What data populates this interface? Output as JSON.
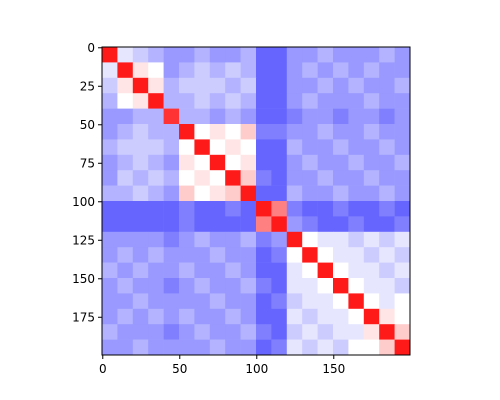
{
  "chart_data": {
    "type": "heatmap",
    "colormap": "bwr",
    "vlim": [
      0,
      1
    ],
    "xlim": [
      -0.5,
      199.5
    ],
    "ylim": [
      199.5,
      -0.5
    ],
    "xticks": [
      0,
      50,
      100,
      150
    ],
    "yticks": [
      0,
      25,
      50,
      75,
      100,
      125,
      150,
      175
    ],
    "values": [
      [
        0.95,
        0.45,
        0.4,
        0.35,
        0.3,
        0.3,
        0.35,
        0.3,
        0.3,
        0.35,
        0.2,
        0.2,
        0.3,
        0.3,
        0.35,
        0.3,
        0.3,
        0.3,
        0.35,
        0.3
      ],
      [
        0.45,
        0.95,
        0.55,
        0.5,
        0.3,
        0.35,
        0.4,
        0.35,
        0.4,
        0.35,
        0.2,
        0.2,
        0.3,
        0.35,
        0.3,
        0.35,
        0.3,
        0.35,
        0.3,
        0.3
      ],
      [
        0.4,
        0.55,
        0.95,
        0.55,
        0.35,
        0.4,
        0.4,
        0.4,
        0.35,
        0.4,
        0.2,
        0.2,
        0.3,
        0.3,
        0.35,
        0.3,
        0.35,
        0.3,
        0.3,
        0.35
      ],
      [
        0.35,
        0.5,
        0.55,
        0.95,
        0.35,
        0.35,
        0.4,
        0.35,
        0.4,
        0.35,
        0.2,
        0.2,
        0.3,
        0.35,
        0.3,
        0.3,
        0.3,
        0.35,
        0.3,
        0.3
      ],
      [
        0.3,
        0.3,
        0.35,
        0.35,
        0.9,
        0.35,
        0.35,
        0.3,
        0.35,
        0.3,
        0.2,
        0.2,
        0.25,
        0.3,
        0.3,
        0.25,
        0.3,
        0.3,
        0.25,
        0.3
      ],
      [
        0.3,
        0.35,
        0.4,
        0.35,
        0.35,
        0.95,
        0.5,
        0.55,
        0.5,
        0.6,
        0.25,
        0.25,
        0.3,
        0.3,
        0.35,
        0.3,
        0.3,
        0.35,
        0.3,
        0.3
      ],
      [
        0.35,
        0.4,
        0.4,
        0.4,
        0.35,
        0.5,
        0.95,
        0.5,
        0.55,
        0.5,
        0.2,
        0.2,
        0.35,
        0.3,
        0.3,
        0.35,
        0.3,
        0.3,
        0.35,
        0.3
      ],
      [
        0.3,
        0.35,
        0.4,
        0.35,
        0.3,
        0.55,
        0.5,
        0.95,
        0.5,
        0.55,
        0.2,
        0.2,
        0.3,
        0.35,
        0.3,
        0.3,
        0.35,
        0.3,
        0.3,
        0.35
      ],
      [
        0.3,
        0.4,
        0.35,
        0.4,
        0.35,
        0.5,
        0.55,
        0.5,
        0.95,
        0.6,
        0.25,
        0.2,
        0.3,
        0.3,
        0.35,
        0.3,
        0.3,
        0.35,
        0.3,
        0.3
      ],
      [
        0.35,
        0.35,
        0.4,
        0.35,
        0.3,
        0.6,
        0.5,
        0.55,
        0.6,
        0.95,
        0.2,
        0.2,
        0.35,
        0.3,
        0.3,
        0.35,
        0.3,
        0.3,
        0.35,
        0.3
      ],
      [
        0.2,
        0.2,
        0.2,
        0.2,
        0.2,
        0.25,
        0.2,
        0.2,
        0.25,
        0.2,
        0.95,
        0.75,
        0.25,
        0.2,
        0.2,
        0.25,
        0.2,
        0.2,
        0.25,
        0.2
      ],
      [
        0.2,
        0.2,
        0.2,
        0.2,
        0.2,
        0.25,
        0.2,
        0.2,
        0.2,
        0.2,
        0.75,
        0.95,
        0.3,
        0.25,
        0.2,
        0.2,
        0.25,
        0.2,
        0.2,
        0.25
      ],
      [
        0.3,
        0.3,
        0.3,
        0.3,
        0.25,
        0.3,
        0.35,
        0.3,
        0.3,
        0.35,
        0.25,
        0.3,
        0.95,
        0.5,
        0.45,
        0.45,
        0.4,
        0.45,
        0.4,
        0.45
      ],
      [
        0.3,
        0.35,
        0.3,
        0.35,
        0.3,
        0.3,
        0.3,
        0.35,
        0.3,
        0.3,
        0.2,
        0.25,
        0.5,
        0.95,
        0.5,
        0.45,
        0.45,
        0.4,
        0.45,
        0.4
      ],
      [
        0.35,
        0.3,
        0.35,
        0.3,
        0.3,
        0.35,
        0.3,
        0.3,
        0.35,
        0.3,
        0.2,
        0.2,
        0.45,
        0.5,
        0.95,
        0.5,
        0.45,
        0.45,
        0.4,
        0.45
      ],
      [
        0.3,
        0.35,
        0.3,
        0.3,
        0.25,
        0.3,
        0.35,
        0.3,
        0.3,
        0.35,
        0.25,
        0.2,
        0.45,
        0.45,
        0.5,
        0.95,
        0.5,
        0.45,
        0.45,
        0.4
      ],
      [
        0.3,
        0.3,
        0.35,
        0.3,
        0.3,
        0.3,
        0.3,
        0.35,
        0.3,
        0.3,
        0.2,
        0.25,
        0.4,
        0.45,
        0.45,
        0.5,
        0.95,
        0.5,
        0.45,
        0.5
      ],
      [
        0.3,
        0.35,
        0.3,
        0.35,
        0.3,
        0.35,
        0.3,
        0.3,
        0.35,
        0.3,
        0.2,
        0.2,
        0.45,
        0.4,
        0.45,
        0.45,
        0.5,
        0.95,
        0.55,
        0.5
      ],
      [
        0.35,
        0.3,
        0.3,
        0.3,
        0.25,
        0.3,
        0.35,
        0.3,
        0.3,
        0.35,
        0.25,
        0.2,
        0.4,
        0.45,
        0.4,
        0.45,
        0.45,
        0.55,
        0.95,
        0.6
      ],
      [
        0.3,
        0.3,
        0.35,
        0.3,
        0.3,
        0.3,
        0.3,
        0.35,
        0.3,
        0.3,
        0.2,
        0.25,
        0.45,
        0.4,
        0.45,
        0.4,
        0.5,
        0.5,
        0.6,
        0.95
      ]
    ]
  }
}
